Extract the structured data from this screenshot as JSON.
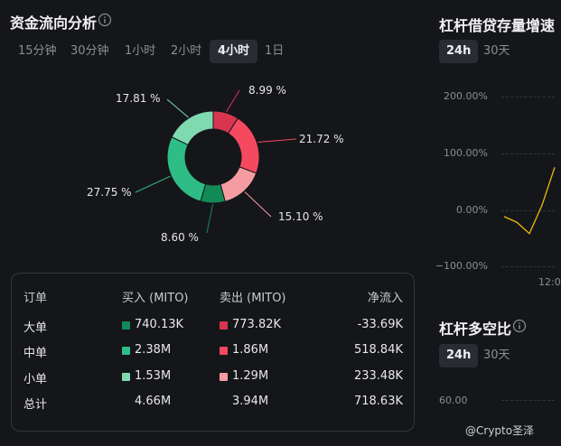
{
  "fund_flow": {
    "title": "资金流向分析",
    "tabs": [
      {
        "label": "15分钟",
        "active": false
      },
      {
        "label": "30分钟",
        "active": false
      },
      {
        "label": "1小时",
        "active": false
      },
      {
        "label": "2小时",
        "active": false
      },
      {
        "label": "4小时",
        "active": true
      },
      {
        "label": "1日",
        "active": false
      }
    ],
    "donut": {
      "slices": [
        {
          "value": 8.99,
          "label": "8.99 %",
          "color": "#d8354f"
        },
        {
          "value": 21.72,
          "label": "21.72 %",
          "color": "#f5495f"
        },
        {
          "value": 15.1,
          "label": "15.10 %",
          "color": "#f59ca3"
        },
        {
          "value": 8.6,
          "label": "8.60 %",
          "color": "#128a55"
        },
        {
          "value": 27.75,
          "label": "27.75 %",
          "color": "#2ebd85"
        },
        {
          "value": 17.81,
          "label": "17.81 %",
          "color": "#7fdab0"
        }
      ]
    },
    "table": {
      "headers": {
        "order": "订单",
        "buy": "买入 (MITO)",
        "sell": "卖出 (MITO)",
        "net": "净流入"
      },
      "rows": [
        {
          "name": "大单",
          "buy": "740.13K",
          "sell": "773.82K",
          "net": "-33.69K",
          "buy_color": "#128a55",
          "sell_color": "#d8354f"
        },
        {
          "name": "中单",
          "buy": "2.38M",
          "sell": "1.86M",
          "net": "518.84K",
          "buy_color": "#2ebd85",
          "sell_color": "#f5495f"
        },
        {
          "name": "小单",
          "buy": "1.53M",
          "sell": "1.29M",
          "net": "233.48K",
          "buy_color": "#7fdab0",
          "sell_color": "#f59ca3"
        },
        {
          "name": "总计",
          "buy": "4.66M",
          "sell": "3.94M",
          "net": "718.63K"
        }
      ]
    }
  },
  "leverage_growth": {
    "title": "杠杆借贷存量增速",
    "tabs": [
      {
        "label": "24h",
        "active": true
      },
      {
        "label": "30天",
        "active": false
      }
    ],
    "y_ticks": [
      "200.00%",
      "100.00%",
      "0.00%",
      "−100.00%"
    ],
    "x_tick": "12:0",
    "line_color": "#f0b90b",
    "chart_data": {
      "type": "line",
      "y_ticks": [
        200,
        100,
        0,
        -100
      ],
      "values": [
        -12,
        -22,
        -42,
        8,
        75
      ],
      "ylim": [
        -100,
        200
      ]
    }
  },
  "long_short": {
    "title": "杠杆多空比",
    "tabs": [
      {
        "label": "24h",
        "active": true
      },
      {
        "label": "30天",
        "active": false
      }
    ],
    "y_tick": "60.00"
  },
  "watermark": "@Crypto圣泽"
}
